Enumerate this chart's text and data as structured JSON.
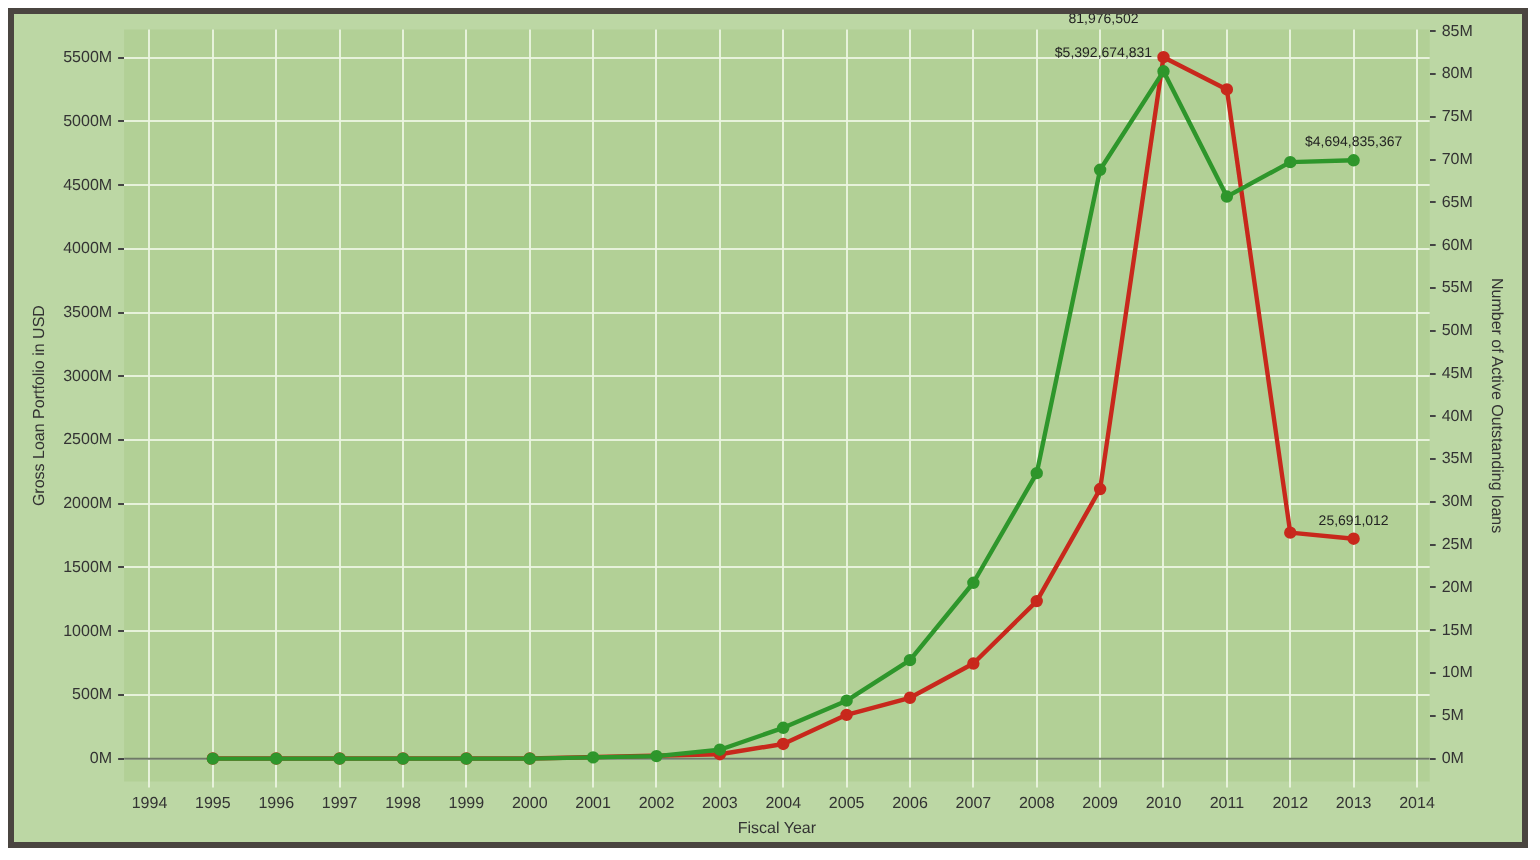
{
  "chart_data": {
    "type": "line",
    "xlabel": "Fiscal Year",
    "ylabel": "Gross Loan Portfolio in USD",
    "y2label": "Number of Active Outstanding loans",
    "x": [
      1995,
      1996,
      1997,
      1998,
      1999,
      2000,
      2001,
      2002,
      2003,
      2004,
      2005,
      2006,
      2007,
      2008,
      2009,
      2010,
      2011,
      2012,
      2013
    ],
    "series": [
      {
        "color": "#2e962b",
        "values": [
          0,
          0,
          0,
          0,
          0,
          0,
          10000000,
          20000000,
          70000000,
          242000000,
          455000000,
          773000000,
          1380000000,
          2240000000,
          4620000000,
          5392674831,
          4410000000,
          4680000000,
          4694835367
        ],
        "value_labels": [
          null,
          null,
          null,
          null,
          null,
          null,
          null,
          null,
          null,
          null,
          null,
          null,
          null,
          null,
          null,
          "$5,392,674,831",
          null,
          null,
          "$4,694,835,367"
        ]
      },
      {
        "color": "#c8281c",
        "axis": "y2",
        "values": [
          0,
          0,
          0,
          0,
          0,
          0,
          null,
          null,
          500000,
          1700000,
          5100000,
          7100000,
          11100000,
          18400000,
          31500000,
          81976502,
          78200000,
          26400000,
          25691012
        ],
        "value_labels": [
          null,
          null,
          null,
          null,
          null,
          null,
          null,
          null,
          null,
          null,
          null,
          null,
          null,
          null,
          null,
          "81,976,502",
          null,
          null,
          "25,691,012"
        ]
      }
    ],
    "xlim": [
      1993.6,
      2014.2
    ],
    "xticks": [
      1994,
      1995,
      1996,
      1997,
      1998,
      1999,
      2000,
      2001,
      2002,
      2003,
      2004,
      2005,
      2006,
      2007,
      2008,
      2009,
      2010,
      2011,
      2012,
      2013,
      2014
    ],
    "ylim": [
      -180000000,
      5720000000
    ],
    "yticks": [
      {
        "value": 0,
        "label": "0M"
      },
      {
        "value": 500000000,
        "label": "500M"
      },
      {
        "value": 1000000000,
        "label": "1000M"
      },
      {
        "value": 1500000000,
        "label": "1500M"
      },
      {
        "value": 2000000000,
        "label": "2000M"
      },
      {
        "value": 2500000000,
        "label": "2500M"
      },
      {
        "value": 3000000000,
        "label": "3000M"
      },
      {
        "value": 3500000000,
        "label": "3500M"
      },
      {
        "value": 4000000000,
        "label": "4000M"
      },
      {
        "value": 4500000000,
        "label": "4500M"
      },
      {
        "value": 5000000000,
        "label": "5000M"
      },
      {
        "value": 5500000000,
        "label": "5500M"
      }
    ],
    "y2lim": [
      -2700000,
      85200000
    ],
    "y2ticks": [
      {
        "value": 0,
        "label": "0M"
      },
      {
        "value": 5000000,
        "label": "5M"
      },
      {
        "value": 10000000,
        "label": "10M"
      },
      {
        "value": 15000000,
        "label": "15M"
      },
      {
        "value": 20000000,
        "label": "20M"
      },
      {
        "value": 25000000,
        "label": "25M"
      },
      {
        "value": 30000000,
        "label": "30M"
      },
      {
        "value": 35000000,
        "label": "35M"
      },
      {
        "value": 40000000,
        "label": "40M"
      },
      {
        "value": 45000000,
        "label": "45M"
      },
      {
        "value": 50000000,
        "label": "50M"
      },
      {
        "value": 55000000,
        "label": "55M"
      },
      {
        "value": 60000000,
        "label": "60M"
      },
      {
        "value": 65000000,
        "label": "65M"
      },
      {
        "value": 70000000,
        "label": "70M"
      },
      {
        "value": 75000000,
        "label": "75M"
      },
      {
        "value": 80000000,
        "label": "80M"
      },
      {
        "value": 85000000,
        "label": "85M"
      }
    ],
    "ref_lines": [
      {
        "axis": "y",
        "value": 0,
        "color": "#6e7a66"
      }
    ],
    "grid": true,
    "legend": false,
    "marker": "circle",
    "line_style": "solid"
  }
}
